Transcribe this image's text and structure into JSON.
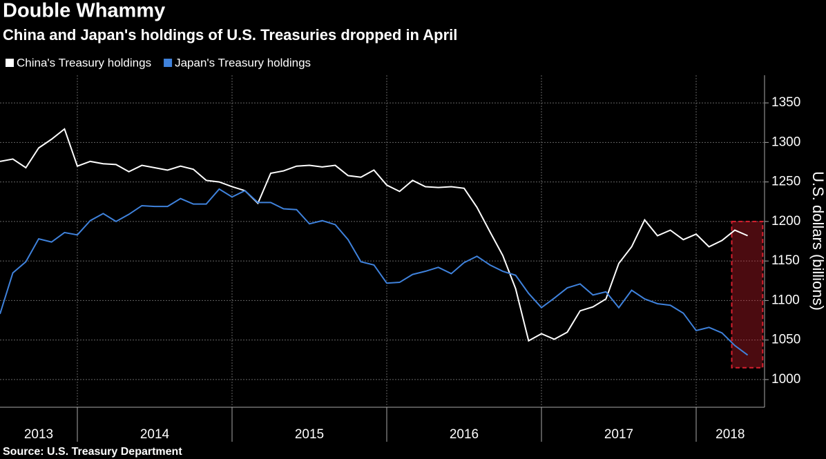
{
  "chart_data": {
    "type": "line",
    "title": "Double Whammy",
    "subtitle": "China and Japan's holdings of U.S. Treasuries dropped in April",
    "y_label": "U.S. dollars (billions)",
    "source": "Source: U.S. Treasury Department",
    "x": [
      2013.5,
      2013.583,
      2013.667,
      2013.75,
      2013.833,
      2013.917,
      2014.0,
      2014.083,
      2014.167,
      2014.25,
      2014.333,
      2014.417,
      2014.5,
      2014.583,
      2014.667,
      2014.75,
      2014.833,
      2014.917,
      2015.0,
      2015.083,
      2015.167,
      2015.25,
      2015.333,
      2015.417,
      2015.5,
      2015.583,
      2015.667,
      2015.75,
      2015.833,
      2015.917,
      2016.0,
      2016.083,
      2016.167,
      2016.25,
      2016.333,
      2016.417,
      2016.5,
      2016.583,
      2016.667,
      2016.75,
      2016.833,
      2016.917,
      2017.0,
      2017.083,
      2017.167,
      2017.25,
      2017.333,
      2017.417,
      2017.5,
      2017.583,
      2017.667,
      2017.75,
      2017.833,
      2017.917,
      2018.0,
      2018.083,
      2018.167,
      2018.25,
      2018.333
    ],
    "series": [
      {
        "name": "China's Treasury holdings",
        "color": "#ffffff",
        "values": [
          1276,
          1279,
          1268,
          1293,
          1304,
          1317,
          1270,
          1276,
          1273,
          1272,
          1263,
          1271,
          1268,
          1265,
          1270,
          1266,
          1252,
          1250,
          1244,
          1239,
          1223,
          1261,
          1264,
          1270,
          1271,
          1269,
          1271,
          1258,
          1256,
          1265,
          1246,
          1238,
          1252,
          1244,
          1243,
          1244,
          1242,
          1218,
          1187,
          1157,
          1115,
          1049,
          1058,
          1051,
          1060,
          1087,
          1092,
          1102,
          1147,
          1168,
          1202,
          1182,
          1189,
          1177,
          1184,
          1168,
          1176,
          1189,
          1182
        ]
      },
      {
        "name": "Japan's Treasury holdings",
        "color": "#3f82dc",
        "values": [
          1083,
          1135,
          1149,
          1178,
          1174,
          1186,
          1183,
          1201,
          1210,
          1200,
          1209,
          1220,
          1219,
          1219,
          1229,
          1222,
          1222,
          1241,
          1231,
          1239,
          1224,
          1224,
          1216,
          1215,
          1197,
          1201,
          1196,
          1177,
          1149,
          1145,
          1122,
          1123,
          1133,
          1137,
          1142,
          1134,
          1148,
          1156,
          1145,
          1137,
          1132,
          1109,
          1091,
          1103,
          1116,
          1121,
          1107,
          1111,
          1091,
          1113,
          1102,
          1096,
          1094,
          1084,
          1062,
          1066,
          1059,
          1043,
          1031
        ]
      }
    ],
    "xlim": [
      2013.5,
      2018.442
    ],
    "xticks": [
      2014,
      2015,
      2016,
      2017,
      2018
    ],
    "x_labels": [
      {
        "value": 2013.75,
        "label": "2013"
      },
      {
        "value": 2014.5,
        "label": "2014"
      },
      {
        "value": 2015.5,
        "label": "2015"
      },
      {
        "value": 2016.5,
        "label": "2016"
      },
      {
        "value": 2017.5,
        "label": "2017"
      },
      {
        "value": 2018.22,
        "label": "2018"
      }
    ],
    "ylim": [
      965,
      1385
    ],
    "yticks": [
      1000,
      1050,
      1100,
      1150,
      1200,
      1250,
      1300,
      1350
    ],
    "grid": true,
    "highlight": {
      "xlim": [
        2018.23,
        2018.43
      ],
      "ylim": [
        1015,
        1200
      ],
      "color": "#d8202f"
    }
  }
}
